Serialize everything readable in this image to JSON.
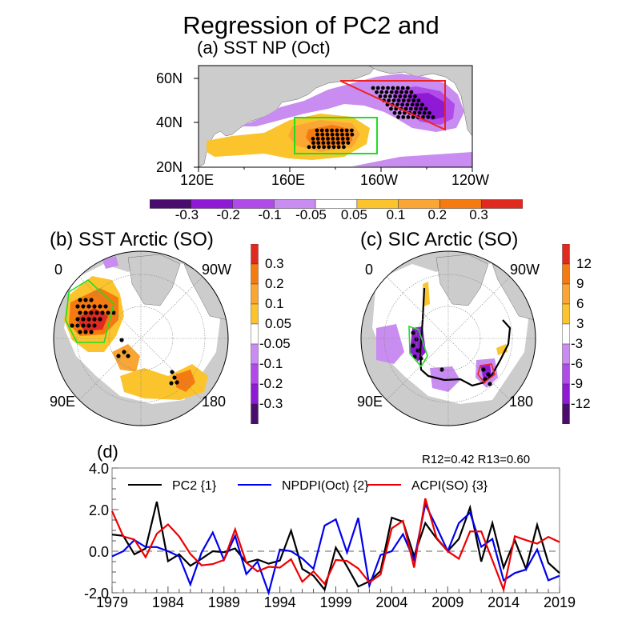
{
  "title": "Regression of PC2 and",
  "panels": {
    "a": {
      "title": "(a) SST NP (Oct)",
      "lat_labels": [
        "60N",
        "40N",
        "20N"
      ],
      "lon_labels": [
        "120E",
        "160E",
        "160W",
        "120W"
      ],
      "colorbar": {
        "labels": [
          "-0.3",
          "-0.2",
          "-0.1",
          "-0.05",
          "0.05",
          "0.1",
          "0.2",
          "0.3"
        ],
        "colors": [
          "#4a0d6e",
          "#8e1ad6",
          "#b04ae8",
          "#c98cf0",
          "#ffffff",
          "#fcc42c",
          "#f9a634",
          "#f57a10",
          "#e02a20"
        ]
      },
      "boxes": [
        {
          "name": "green-box",
          "color": "#22dd22",
          "shape": "rectangle"
        },
        {
          "name": "red-triangle",
          "color": "#ee2222",
          "shape": "triangle"
        }
      ]
    },
    "b": {
      "title": "(b) SST Arctic (SO)",
      "lon_labels": [
        "0",
        "90W",
        "90E",
        "180"
      ],
      "colorbar": {
        "labels": [
          "0.3",
          "0.2",
          "0.1",
          "0.05",
          "-0.05",
          "-0.1",
          "-0.2",
          "-0.3"
        ],
        "colors": [
          "#e02a20",
          "#f57a10",
          "#f9a634",
          "#fcc42c",
          "#ffffff",
          "#c98cf0",
          "#b04ae8",
          "#8e1ad6",
          "#4a0d6e"
        ]
      }
    },
    "c": {
      "title": "(c) SIC Arctic (SO)",
      "lon_labels": [
        "0",
        "90W",
        "90E",
        "180"
      ],
      "colorbar": {
        "labels": [
          "12",
          "9",
          "6",
          "3",
          "-3",
          "-6",
          "-9",
          "-12"
        ],
        "colors": [
          "#e02a20",
          "#f57a10",
          "#f9a634",
          "#fcc42c",
          "#ffffff",
          "#c98cf0",
          "#b04ae8",
          "#8e1ad6",
          "#4a0d6e"
        ]
      }
    }
  },
  "chart_data": {
    "type": "line",
    "title": "(d)",
    "annotation": "R12=0.42 R13=0.60",
    "xlabel": "",
    "ylabel": "",
    "xlim": [
      1979,
      2019
    ],
    "ylim": [
      -2.0,
      4.0
    ],
    "xticks": [
      "1979",
      "1984",
      "1989",
      "1994",
      "1999",
      "2004",
      "2009",
      "2014",
      "2019"
    ],
    "yticks": [
      "4.0",
      "2.0",
      "0.0",
      "-2.0"
    ],
    "zero_line": "dashed",
    "legend_position": "top",
    "x": [
      1979,
      1980,
      1981,
      1982,
      1983,
      1984,
      1985,
      1986,
      1987,
      1988,
      1989,
      1990,
      1991,
      1992,
      1993,
      1994,
      1995,
      1996,
      1997,
      1998,
      1999,
      2000,
      2001,
      2002,
      2003,
      2004,
      2005,
      2006,
      2007,
      2008,
      2009,
      2010,
      2011,
      2012,
      2013,
      2014,
      2015,
      2016,
      2017,
      2018,
      2019
    ],
    "series": [
      {
        "name": "PC2 {1}",
        "color": "#000000",
        "values": [
          0.8,
          0.74,
          -0.15,
          0.13,
          2.38,
          -0.48,
          -0.15,
          -0.7,
          -0.36,
          0.0,
          -0.05,
          0.13,
          -0.55,
          -0.4,
          -0.6,
          -0.45,
          0.99,
          -0.85,
          -1.18,
          -1.85,
          0.17,
          -0.73,
          -1.7,
          -1.45,
          -0.95,
          1.61,
          1.42,
          -0.24,
          1.35,
          0.61,
          0.0,
          0.59,
          2.1,
          -0.5,
          1.35,
          -0.79,
          0.53,
          -0.85,
          1.26,
          -0.56,
          -1.05
        ]
      },
      {
        "name": "NPDPI(Oct) {2}",
        "color": "#0000ee",
        "values": [
          -0.25,
          0.0,
          0.54,
          0.2,
          0.2,
          0.0,
          -0.25,
          -1.6,
          -0.06,
          0.9,
          -0.41,
          0.74,
          -1.1,
          -0.5,
          -2.0,
          0.08,
          0.0,
          -0.35,
          -0.85,
          1.23,
          1.53,
          -0.06,
          1.6,
          -1.66,
          -0.18,
          0.0,
          0.82,
          -0.43,
          2.26,
          1.17,
          0.0,
          1.35,
          1.85,
          0.21,
          0.59,
          -1.4,
          -1.05,
          -0.88,
          0.08,
          -1.4,
          -1.18
        ]
      },
      {
        "name": "ACPI(SO) {3}",
        "color": "#ee0000",
        "values": [
          1.93,
          0.71,
          0.56,
          -0.29,
          0.84,
          1.29,
          0.71,
          -0.13,
          -0.68,
          -0.62,
          -0.42,
          1.05,
          -0.55,
          -0.97,
          -0.75,
          -0.79,
          -0.39,
          -1.47,
          -0.97,
          -1.57,
          -0.42,
          -0.47,
          -0.83,
          -1.5,
          -1.12,
          1.1,
          1.46,
          -0.79,
          2.54,
          0.65,
          0.0,
          -0.36,
          0.95,
          0.95,
          -0.44,
          -1.85,
          0.72,
          0.53,
          0.36,
          0.69,
          0.44
        ]
      }
    ]
  }
}
